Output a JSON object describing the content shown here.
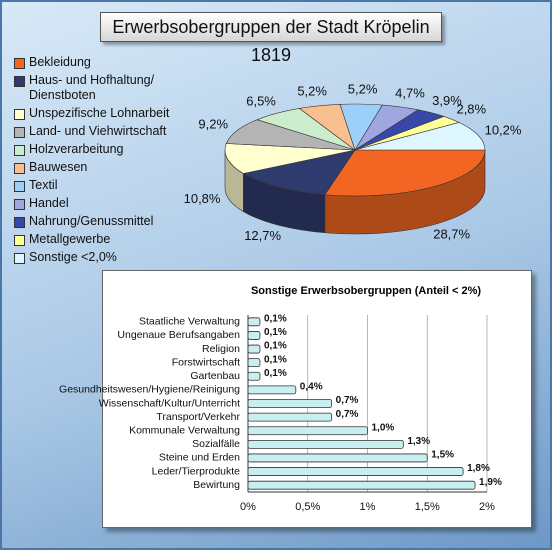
{
  "chart_data": [
    {
      "type": "pie",
      "title": "Erwerbsobergruppen der Stadt Kröpelin 1819",
      "categories": [
        "Bekleidung",
        "Haus- und Hofhaltung/ Dienstboten",
        "Unspezifische Lohnarbeit",
        "Land- und Viehwirtschaft",
        "Holzverarbeitung",
        "Bauwesen",
        "Textil",
        "Handel",
        "Nahrung/Genussmittel",
        "Metallgewerbe",
        "Sonstige <2,0%"
      ],
      "values": [
        28.7,
        12.7,
        10.8,
        9.2,
        6.5,
        5.2,
        5.2,
        4.7,
        3.9,
        2.8,
        10.2
      ],
      "value_labels": [
        "28,7%",
        "12,7%",
        "10,8%",
        "9,2%",
        "6,5%",
        "5,2%",
        "5,2%",
        "4,7%",
        "3,9%",
        "2,8%",
        "10,2%"
      ],
      "colors": [
        "#f26522",
        "#2f3a6e",
        "#ffffd0",
        "#b4b4b4",
        "#cdeccd",
        "#f8c08f",
        "#9cd0fa",
        "#a0a6e0",
        "#3848a8",
        "#ffff99",
        "#ddf6ff"
      ]
    },
    {
      "type": "bar",
      "orientation": "horizontal",
      "title": "Sonstige Erwerbsobergruppen (Anteil < 2%)",
      "categories": [
        "Staatliche Verwaltung",
        "Ungenaue Berufsangaben",
        "Religion",
        "Forstwirtschaft",
        "Gartenbau",
        "Gesundheitswesen/Hygiene/Reinigung",
        "Wissenschaft/Kultur/Unterricht",
        "Transport/Verkehr",
        "Kommunale Verwaltung",
        "Sozialfälle",
        "Steine und Erden",
        "Leder/Tierprodukte",
        "Bewirtung"
      ],
      "values": [
        0.1,
        0.1,
        0.1,
        0.1,
        0.1,
        0.4,
        0.7,
        0.7,
        1.0,
        1.3,
        1.5,
        1.8,
        1.9
      ],
      "value_labels": [
        "0,1%",
        "0,1%",
        "0,1%",
        "0,1%",
        "0,1%",
        "0,4%",
        "0,7%",
        "0,7%",
        "1,0%",
        "1,3%",
        "1,5%",
        "1,8%",
        "1,9%"
      ],
      "color": "#c8eef0",
      "xlim": [
        0,
        2
      ],
      "xticks": [
        {
          "value": 0,
          "label": "0%"
        },
        {
          "value": 0.5,
          "label": "0,5%"
        },
        {
          "value": 1,
          "label": "1%"
        },
        {
          "value": 1.5,
          "label": "1,5%"
        },
        {
          "value": 2,
          "label": "2%"
        }
      ],
      "grid": true
    }
  ]
}
